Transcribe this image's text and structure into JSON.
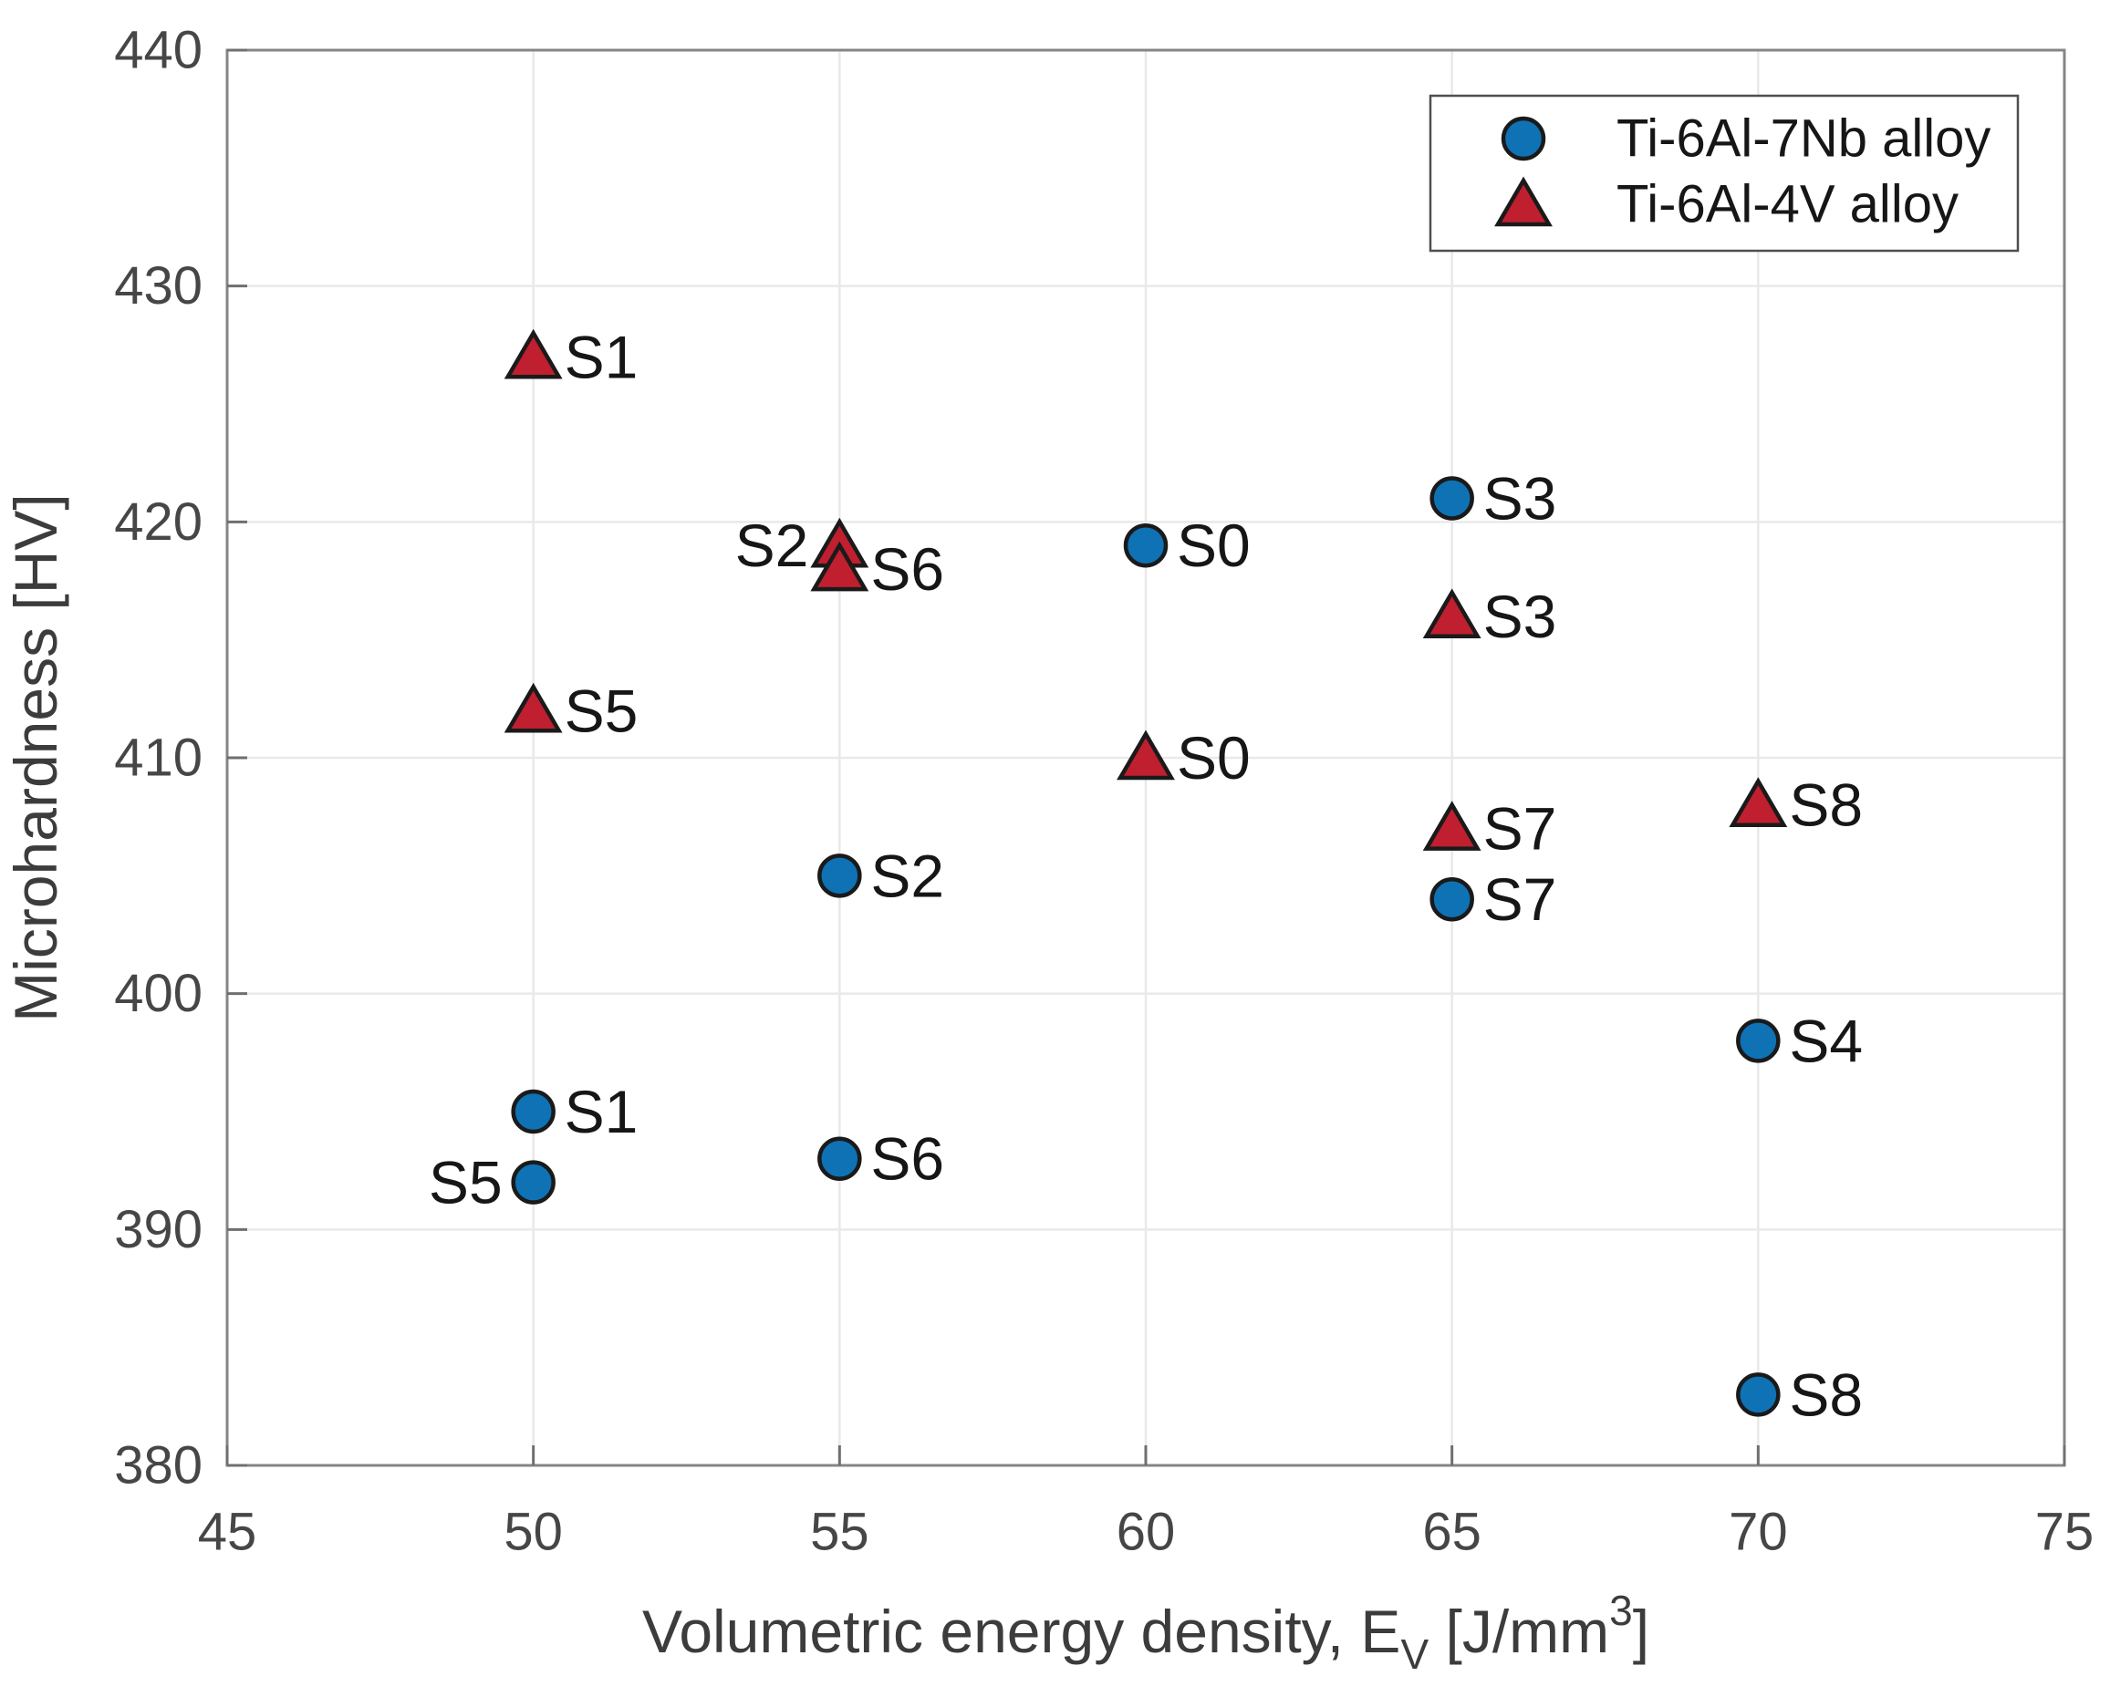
{
  "chart_data": {
    "type": "scatter",
    "title": "",
    "xlabel": "Volumetric energy density, E_V [J/mm^3]",
    "xlabel_rich": [
      {
        "text": "Volumetric energy density, E"
      },
      {
        "text": "V",
        "script": "sub"
      },
      {
        "text": " [J/mm"
      },
      {
        "text": "3",
        "script": "sup"
      },
      {
        "text": "]"
      }
    ],
    "ylabel": "Microhardness [HV]",
    "xlim": [
      45,
      75
    ],
    "ylim": [
      380,
      440
    ],
    "xticks": [
      45,
      50,
      55,
      60,
      65,
      70,
      75
    ],
    "yticks": [
      380,
      390,
      400,
      410,
      420,
      430,
      440
    ],
    "grid": true,
    "legend": {
      "position": "top-right",
      "entries": [
        {
          "label": "Ti-6Al-7Nb alloy",
          "marker": "circle",
          "color": "#0e72b5"
        },
        {
          "label": "Ti-6Al-4V alloy",
          "marker": "triangle",
          "color": "#bf1f2f"
        }
      ]
    },
    "series": [
      {
        "name": "Ti-6Al-7Nb alloy",
        "marker": "circle",
        "color": "#0e72b5",
        "points": [
          {
            "label": "S0",
            "x": 60,
            "y": 419,
            "label_side": "right"
          },
          {
            "label": "S1",
            "x": 50,
            "y": 395,
            "label_side": "right"
          },
          {
            "label": "S2",
            "x": 55,
            "y": 405,
            "label_side": "right"
          },
          {
            "label": "S3",
            "x": 65,
            "y": 421,
            "label_side": "right"
          },
          {
            "label": "S4",
            "x": 70,
            "y": 398,
            "label_side": "right"
          },
          {
            "label": "S5",
            "x": 50,
            "y": 392,
            "label_side": "left"
          },
          {
            "label": "S6",
            "x": 55,
            "y": 393,
            "label_side": "right"
          },
          {
            "label": "S7",
            "x": 65,
            "y": 404,
            "label_side": "right"
          },
          {
            "label": "S8",
            "x": 70,
            "y": 383,
            "label_side": "right"
          }
        ]
      },
      {
        "name": "Ti-6Al-4V alloy",
        "marker": "triangle",
        "color": "#bf1f2f",
        "points": [
          {
            "label": "S0",
            "x": 60,
            "y": 410,
            "label_side": "right"
          },
          {
            "label": "S1",
            "x": 50,
            "y": 427,
            "label_side": "right"
          },
          {
            "label": "S2",
            "x": 55,
            "y": 419,
            "label_side": "left"
          },
          {
            "label": "S3",
            "x": 65,
            "y": 416,
            "label_side": "right"
          },
          {
            "label": "S5",
            "x": 50,
            "y": 412,
            "label_side": "right"
          },
          {
            "label": "S6",
            "x": 55,
            "y": 418,
            "label_side": "right"
          },
          {
            "label": "S7",
            "x": 65,
            "y": 407,
            "label_side": "right"
          },
          {
            "label": "S8",
            "x": 70,
            "y": 408,
            "label_side": "right"
          }
        ]
      }
    ],
    "colors": {
      "blue_marker": "#0e72b5",
      "red_marker": "#bf1f2f",
      "marker_edge": "#1a1a1a",
      "grid": "#e9e9e9",
      "axis_box": "#858585",
      "tick": "#6f6f6f",
      "tick_label": "#464646",
      "axis_label": "#3c3c3c",
      "point_label": "#161616",
      "legend_border": "#4f4f4f",
      "background": "#ffffff"
    }
  }
}
